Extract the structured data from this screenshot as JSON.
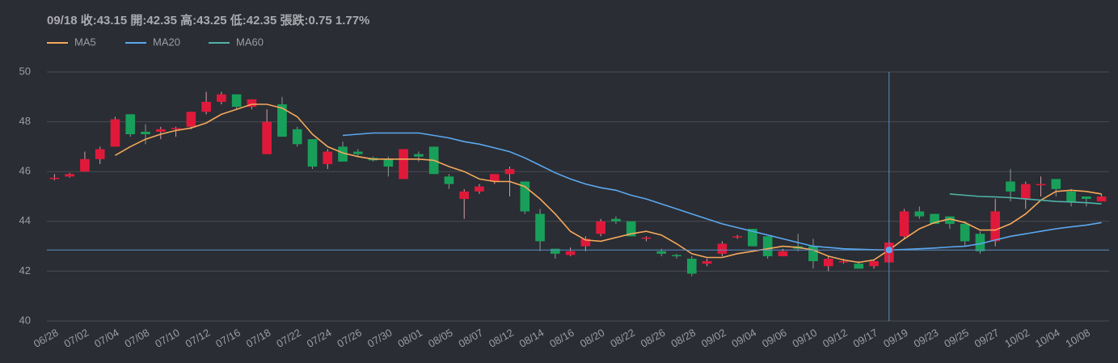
{
  "chart_data": {
    "type": "candlestick",
    "tooltip": "09/18 收:43.15 開:42.35 高:43.25 低:42.35 張跌:0.75 1.77%",
    "categories": [
      "06/28",
      null,
      "07/02",
      null,
      "07/04",
      null,
      "07/08",
      null,
      "07/10",
      null,
      "07/12",
      null,
      "07/16",
      null,
      "07/18",
      null,
      "07/22",
      null,
      "07/24",
      null,
      "07/26",
      null,
      "07/30",
      null,
      "08/01",
      null,
      "08/05",
      null,
      "08/07",
      null,
      "08/12",
      null,
      "08/14",
      null,
      "08/16",
      null,
      "08/20",
      null,
      "08/22",
      null,
      "08/26",
      null,
      "08/28",
      null,
      "09/02",
      null,
      "09/04",
      null,
      "09/06",
      null,
      "09/10",
      null,
      "09/12",
      null,
      "09/17",
      null,
      "09/19",
      null,
      "09/23",
      null,
      "09/25",
      null,
      "09/27",
      null,
      "10/02",
      null,
      "10/04",
      null,
      "10/08",
      null
    ],
    "open": [
      45.7,
      45.8,
      46.0,
      46.5,
      47.0,
      48.3,
      47.6,
      47.6,
      47.7,
      47.8,
      48.4,
      48.8,
      49.1,
      48.6,
      46.7,
      48.7,
      47.7,
      47.3,
      46.3,
      47.0,
      46.8,
      46.55,
      46.5,
      45.7,
      46.7,
      47.0,
      45.8,
      44.9,
      45.2,
      45.6,
      45.9,
      45.6,
      44.3,
      42.9,
      42.65,
      43.0,
      43.5,
      44.1,
      44.0,
      43.3,
      42.8,
      42.65,
      42.5,
      42.3,
      42.7,
      43.35,
      43.7,
      43.4,
      42.6,
      43.0,
      43.0,
      42.2,
      42.35,
      42.3,
      42.2,
      42.35,
      43.4,
      44.4,
      44.3,
      44.2,
      43.9,
      43.5,
      43.2,
      45.6,
      44.9,
      45.45,
      45.7,
      45.2,
      45.0,
      44.8
    ],
    "high": [
      45.9,
      45.95,
      46.8,
      47.0,
      48.2,
      48.3,
      47.9,
      47.8,
      47.8,
      48.4,
      49.2,
      49.2,
      49.1,
      48.9,
      48.5,
      49.0,
      47.8,
      47.3,
      46.9,
      47.2,
      46.9,
      46.6,
      46.6,
      46.9,
      46.8,
      47.0,
      45.9,
      45.3,
      45.5,
      45.9,
      46.2,
      45.6,
      44.5,
      42.9,
      42.95,
      43.4,
      44.1,
      44.2,
      44.0,
      43.4,
      42.9,
      42.7,
      42.6,
      42.5,
      43.2,
      43.45,
      43.7,
      43.4,
      42.9,
      43.5,
      43.3,
      42.6,
      42.5,
      42.4,
      42.45,
      43.25,
      44.5,
      44.6,
      44.3,
      44.2,
      44.0,
      43.6,
      44.9,
      46.1,
      45.6,
      45.8,
      45.7,
      45.3,
      45.0,
      45.1
    ],
    "low": [
      45.65,
      45.75,
      46.0,
      46.3,
      47.0,
      47.4,
      47.1,
      47.3,
      47.4,
      47.7,
      48.3,
      48.7,
      48.5,
      48.5,
      46.7,
      47.4,
      47.0,
      46.1,
      46.1,
      46.4,
      46.6,
      46.4,
      45.8,
      45.7,
      46.4,
      45.9,
      45.3,
      44.1,
      45.1,
      45.5,
      45.0,
      44.3,
      42.8,
      42.5,
      42.6,
      42.8,
      43.4,
      43.9,
      43.4,
      43.2,
      42.6,
      42.5,
      41.8,
      42.2,
      42.6,
      43.3,
      43.0,
      42.5,
      42.6,
      42.8,
      42.1,
      42.0,
      42.3,
      42.1,
      42.1,
      42.35,
      43.3,
      44.1,
      43.9,
      43.7,
      43.0,
      42.7,
      43.0,
      44.8,
      44.5,
      45.0,
      45.0,
      44.6,
      44.6,
      44.8
    ],
    "close": [
      45.75,
      45.9,
      46.5,
      46.9,
      48.1,
      47.5,
      47.5,
      47.7,
      47.75,
      48.4,
      48.8,
      49.1,
      48.6,
      48.9,
      48.0,
      47.4,
      47.1,
      46.2,
      46.8,
      46.4,
      46.7,
      46.45,
      46.2,
      46.9,
      46.6,
      45.9,
      45.5,
      45.2,
      45.4,
      45.9,
      46.1,
      44.4,
      43.2,
      42.7,
      42.8,
      43.3,
      44.0,
      44.0,
      43.4,
      43.35,
      42.7,
      42.6,
      41.9,
      42.4,
      43.1,
      43.4,
      43.0,
      42.6,
      42.8,
      42.9,
      42.4,
      42.5,
      42.4,
      42.1,
      42.4,
      43.15,
      44.4,
      44.2,
      43.9,
      43.9,
      43.2,
      42.8,
      44.4,
      45.2,
      45.5,
      45.5,
      45.3,
      44.8,
      44.9,
      45.0
    ],
    "up_color": "#e0193a",
    "down_color": "#18a05a",
    "series": [
      {
        "name": "MA5",
        "color": "#f5a85c",
        "values": [
          null,
          null,
          null,
          null,
          46.65,
          47.0,
          47.3,
          47.5,
          47.65,
          47.75,
          47.95,
          48.3,
          48.5,
          48.7,
          48.7,
          48.55,
          48.2,
          47.5,
          47.0,
          46.75,
          46.6,
          46.5,
          46.5,
          46.5,
          46.5,
          46.45,
          46.2,
          46.0,
          45.7,
          45.6,
          45.6,
          45.4,
          44.9,
          44.3,
          43.6,
          43.25,
          43.2,
          43.35,
          43.5,
          43.6,
          43.45,
          43.1,
          42.7,
          42.55,
          42.55,
          42.7,
          42.8,
          42.9,
          43.0,
          42.95,
          42.85,
          42.6,
          42.45,
          42.35,
          42.45,
          42.85,
          43.3,
          43.7,
          43.95,
          44.1,
          43.95,
          43.65,
          43.65,
          43.9,
          44.3,
          44.85,
          45.2,
          45.25,
          45.2,
          45.1
        ]
      },
      {
        "name": "MA20",
        "color": "#5ba8f0",
        "values": [
          null,
          null,
          null,
          null,
          null,
          null,
          null,
          null,
          null,
          null,
          null,
          null,
          null,
          null,
          null,
          null,
          null,
          null,
          null,
          47.45,
          47.5,
          47.55,
          47.55,
          47.55,
          47.55,
          47.45,
          47.35,
          47.2,
          47.1,
          46.95,
          46.8,
          46.55,
          46.25,
          45.95,
          45.7,
          45.5,
          45.35,
          45.25,
          45.05,
          44.9,
          44.7,
          44.5,
          44.3,
          44.1,
          43.9,
          43.75,
          43.6,
          43.45,
          43.3,
          43.15,
          43.0,
          42.95,
          42.9,
          42.88,
          42.86,
          42.85,
          42.87,
          42.9,
          42.93,
          42.97,
          43.0,
          43.1,
          43.25,
          43.4,
          43.5,
          43.6,
          43.7,
          43.78,
          43.85,
          43.95
        ]
      },
      {
        "name": "MA60",
        "color": "#4fb3a9",
        "values": [
          null,
          null,
          null,
          null,
          null,
          null,
          null,
          null,
          null,
          null,
          null,
          null,
          null,
          null,
          null,
          null,
          null,
          null,
          null,
          null,
          null,
          null,
          null,
          null,
          null,
          null,
          null,
          null,
          null,
          null,
          null,
          null,
          null,
          null,
          null,
          null,
          null,
          null,
          null,
          null,
          null,
          null,
          null,
          null,
          null,
          null,
          null,
          null,
          null,
          null,
          null,
          null,
          null,
          null,
          null,
          null,
          null,
          null,
          null,
          45.1,
          45.05,
          45.0,
          44.98,
          44.95,
          44.9,
          44.85,
          44.8,
          44.78,
          44.75,
          44.7
        ]
      }
    ],
    "ylim": [
      40,
      50
    ],
    "yticks": [
      40,
      42,
      44,
      46,
      48,
      50
    ],
    "grid": true,
    "crosshair": {
      "index": 55,
      "y": 42.85
    }
  }
}
